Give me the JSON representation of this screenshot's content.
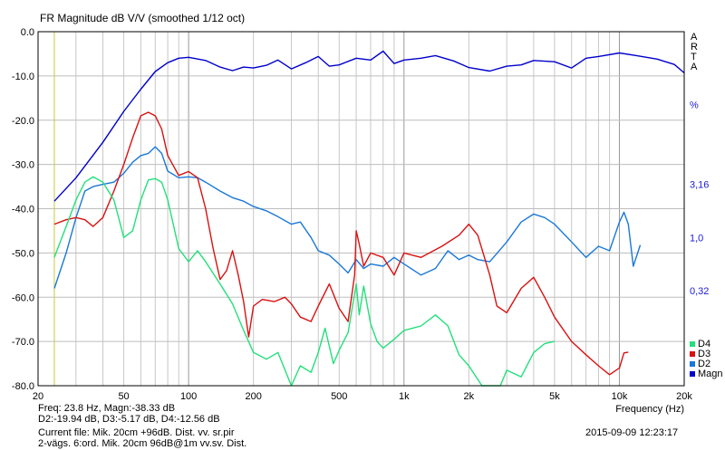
{
  "header": {
    "title": "FR Magnitude dB V/V (smoothed 1/12 oct)",
    "brand": [
      "A",
      "R",
      "T",
      "A"
    ]
  },
  "chart_data": {
    "type": "line",
    "title": "FR Magnitude dB V/V (smoothed 1/12 oct)",
    "xlabel": "Frequency (Hz)",
    "ylabel": "",
    "xscale": "log",
    "xlim": [
      20,
      20000
    ],
    "ylim": [
      -80,
      0
    ],
    "grid": true,
    "legend_position": "bottom-right",
    "x_tick_values": [
      20,
      50,
      100,
      200,
      500,
      1000,
      2000,
      5000,
      10000,
      20000
    ],
    "x_tick_labels": [
      "20",
      "50",
      "100",
      "200",
      "500",
      "1k",
      "2k",
      "5k",
      "10k",
      "20k"
    ],
    "y_tick_values": [
      0,
      -10,
      -20,
      -30,
      -40,
      -50,
      -60,
      -70,
      -80
    ],
    "y_tick_labels": [
      "0.0",
      "-10.0",
      "-20.0",
      "-30.0",
      "-40.0",
      "-50.0",
      "-60.0",
      "-70.0",
      "-80.0"
    ],
    "right_axis_labels": [
      {
        "text": "%",
        "y": -16.5
      },
      {
        "text": "3,16",
        "y": -34.5
      },
      {
        "text": "1,0",
        "y": -46.5
      },
      {
        "text": "0,32",
        "y": -58.5
      }
    ],
    "cursor_frequency": 23.8,
    "series": [
      {
        "name": "Magn",
        "color": "#0000cc",
        "points": [
          [
            23.8,
            -38.3
          ],
          [
            30,
            -33
          ],
          [
            40,
            -25
          ],
          [
            50,
            -18
          ],
          [
            60,
            -13
          ],
          [
            70,
            -9
          ],
          [
            80,
            -7
          ],
          [
            90,
            -6
          ],
          [
            100,
            -5.8
          ],
          [
            120,
            -6.5
          ],
          [
            140,
            -8
          ],
          [
            160,
            -8.8
          ],
          [
            180,
            -8
          ],
          [
            200,
            -8.2
          ],
          [
            230,
            -7.6
          ],
          [
            260,
            -6.4
          ],
          [
            300,
            -8.4
          ],
          [
            350,
            -7
          ],
          [
            400,
            -5.6
          ],
          [
            450,
            -7.8
          ],
          [
            500,
            -7.5
          ],
          [
            600,
            -6
          ],
          [
            700,
            -6.4
          ],
          [
            800,
            -4.4
          ],
          [
            900,
            -7.2
          ],
          [
            1000,
            -6.4
          ],
          [
            1200,
            -6
          ],
          [
            1400,
            -5.4
          ],
          [
            1700,
            -6.6
          ],
          [
            2000,
            -8.1
          ],
          [
            2500,
            -8.9
          ],
          [
            3000,
            -7.8
          ],
          [
            3500,
            -7.5
          ],
          [
            4000,
            -6.5
          ],
          [
            5000,
            -6.8
          ],
          [
            6000,
            -8.2
          ],
          [
            7000,
            -6
          ],
          [
            8000,
            -5.6
          ],
          [
            10000,
            -4.8
          ],
          [
            12000,
            -5.4
          ],
          [
            15000,
            -6.2
          ],
          [
            18000,
            -7.4
          ],
          [
            20000,
            -9.3
          ]
        ]
      },
      {
        "name": "D2",
        "color": "#1a78d8",
        "points": [
          [
            23.8,
            -58
          ],
          [
            27,
            -50
          ],
          [
            30,
            -42
          ],
          [
            33,
            -36
          ],
          [
            36,
            -35
          ],
          [
            40,
            -34.5
          ],
          [
            45,
            -34
          ],
          [
            50,
            -32
          ],
          [
            55,
            -29.5
          ],
          [
            60,
            -28
          ],
          [
            65,
            -27.5
          ],
          [
            70,
            -26
          ],
          [
            75,
            -27.5
          ],
          [
            80,
            -31.5
          ],
          [
            90,
            -33
          ],
          [
            100,
            -32.8
          ],
          [
            110,
            -33
          ],
          [
            120,
            -34
          ],
          [
            140,
            -36
          ],
          [
            160,
            -37.5
          ],
          [
            180,
            -38.3
          ],
          [
            200,
            -39.5
          ],
          [
            230,
            -40.5
          ],
          [
            260,
            -41.8
          ],
          [
            300,
            -43.5
          ],
          [
            330,
            -43
          ],
          [
            370,
            -46.5
          ],
          [
            400,
            -49.5
          ],
          [
            450,
            -50.5
          ],
          [
            500,
            -52.5
          ],
          [
            550,
            -54.5
          ],
          [
            600,
            -51.5
          ],
          [
            650,
            -53.5
          ],
          [
            700,
            -52.5
          ],
          [
            800,
            -53
          ],
          [
            900,
            -51
          ],
          [
            1000,
            -52.5
          ],
          [
            1200,
            -55
          ],
          [
            1400,
            -53.5
          ],
          [
            1600,
            -49.5
          ],
          [
            1800,
            -51.5
          ],
          [
            2000,
            -50.5
          ],
          [
            2200,
            -51.5
          ],
          [
            2500,
            -52
          ],
          [
            3000,
            -47.5
          ],
          [
            3500,
            -43
          ],
          [
            4000,
            -41.2
          ],
          [
            4500,
            -42
          ],
          [
            5000,
            -43.5
          ],
          [
            6000,
            -47.5
          ],
          [
            7000,
            -51
          ],
          [
            8000,
            -48.5
          ],
          [
            9000,
            -49.5
          ],
          [
            10000,
            -43
          ],
          [
            10500,
            -40.8
          ],
          [
            11000,
            -43.5
          ],
          [
            11600,
            -53
          ],
          [
            12500,
            -48.2
          ]
        ]
      },
      {
        "name": "D3",
        "color": "#d91111",
        "points": [
          [
            23.8,
            -43.5
          ],
          [
            27,
            -42.5
          ],
          [
            30,
            -42
          ],
          [
            33,
            -42.5
          ],
          [
            36,
            -44
          ],
          [
            40,
            -42
          ],
          [
            45,
            -36
          ],
          [
            50,
            -30
          ],
          [
            55,
            -24
          ],
          [
            60,
            -19
          ],
          [
            65,
            -18.2
          ],
          [
            70,
            -19
          ],
          [
            75,
            -22
          ],
          [
            80,
            -28
          ],
          [
            90,
            -32.5
          ],
          [
            100,
            -31.6
          ],
          [
            110,
            -33
          ],
          [
            120,
            -40
          ],
          [
            130,
            -49
          ],
          [
            140,
            -56
          ],
          [
            150,
            -54
          ],
          [
            160,
            -49.5
          ],
          [
            170,
            -55
          ],
          [
            180,
            -61
          ],
          [
            190,
            -69
          ],
          [
            200,
            -62
          ],
          [
            220,
            -60.5
          ],
          [
            250,
            -61
          ],
          [
            280,
            -60
          ],
          [
            300,
            -61.5
          ],
          [
            330,
            -64.5
          ],
          [
            370,
            -65.5
          ],
          [
            400,
            -62
          ],
          [
            450,
            -57
          ],
          [
            500,
            -62.5
          ],
          [
            550,
            -65.5
          ],
          [
            590,
            -55
          ],
          [
            600,
            -45
          ],
          [
            620,
            -48
          ],
          [
            650,
            -53
          ],
          [
            700,
            -50
          ],
          [
            800,
            -51
          ],
          [
            900,
            -55
          ],
          [
            1000,
            -50
          ],
          [
            1200,
            -51
          ],
          [
            1500,
            -48.5
          ],
          [
            1800,
            -46
          ],
          [
            2000,
            -43.5
          ],
          [
            2200,
            -46
          ],
          [
            2500,
            -55
          ],
          [
            2700,
            -62
          ],
          [
            3000,
            -63.5
          ],
          [
            3500,
            -58
          ],
          [
            4000,
            -55.5
          ],
          [
            4500,
            -60
          ],
          [
            5000,
            -64.5
          ],
          [
            6000,
            -70
          ],
          [
            7000,
            -73
          ],
          [
            8000,
            -75.5
          ],
          [
            9000,
            -77.5
          ],
          [
            10000,
            -76
          ],
          [
            10500,
            -72.6
          ],
          [
            11000,
            -72.4
          ]
        ]
      },
      {
        "name": "D4",
        "color": "#22e07a",
        "points": [
          [
            23.8,
            -51
          ],
          [
            27,
            -44
          ],
          [
            30,
            -38
          ],
          [
            33,
            -34
          ],
          [
            36,
            -32.8
          ],
          [
            40,
            -34
          ],
          [
            45,
            -38
          ],
          [
            50,
            -46.5
          ],
          [
            55,
            -45
          ],
          [
            60,
            -38
          ],
          [
            65,
            -33.5
          ],
          [
            70,
            -33.2
          ],
          [
            75,
            -34
          ],
          [
            80,
            -38
          ],
          [
            90,
            -49
          ],
          [
            100,
            -52
          ],
          [
            110,
            -49.5
          ],
          [
            120,
            -52
          ],
          [
            140,
            -57
          ],
          [
            160,
            -61.5
          ],
          [
            180,
            -67.5
          ],
          [
            200,
            -72.5
          ],
          [
            230,
            -74
          ],
          [
            260,
            -72.5
          ],
          [
            300,
            -80
          ],
          [
            330,
            -75.5
          ],
          [
            370,
            -77
          ],
          [
            400,
            -72.5
          ],
          [
            430,
            -67
          ],
          [
            470,
            -75
          ],
          [
            500,
            -72
          ],
          [
            550,
            -68
          ],
          [
            600,
            -57
          ],
          [
            620,
            -64
          ],
          [
            650,
            -57.5
          ],
          [
            700,
            -66
          ],
          [
            750,
            -70
          ],
          [
            800,
            -71.5
          ],
          [
            900,
            -69.5
          ],
          [
            1000,
            -67.5
          ],
          [
            1200,
            -66.5
          ],
          [
            1400,
            -64
          ],
          [
            1600,
            -66.5
          ],
          [
            1800,
            -73
          ],
          [
            2000,
            -75.5
          ],
          [
            2300,
            -80
          ],
          [
            2500,
            -80
          ],
          [
            2800,
            -80
          ],
          [
            3000,
            -76.5
          ],
          [
            3500,
            -78
          ],
          [
            4000,
            -72.5
          ],
          [
            4500,
            -70.5
          ],
          [
            5000,
            -70
          ]
        ]
      }
    ]
  },
  "footer": {
    "line1": "Freq: 23.8 Hz, Magn:-38.33 dB",
    "line2": "D2:-19.94 dB, D3:-5.17 dB, D4:-12.56 dB",
    "line3": "Current file: Mik. 20cm +96dB. Dist. vv. sr.pir",
    "line4": "2-vägs. 6:ord. Mik. 20cm 96dB@1m vv.sv. Dist.",
    "timestamp": "2015-09-09  12:23:17"
  }
}
